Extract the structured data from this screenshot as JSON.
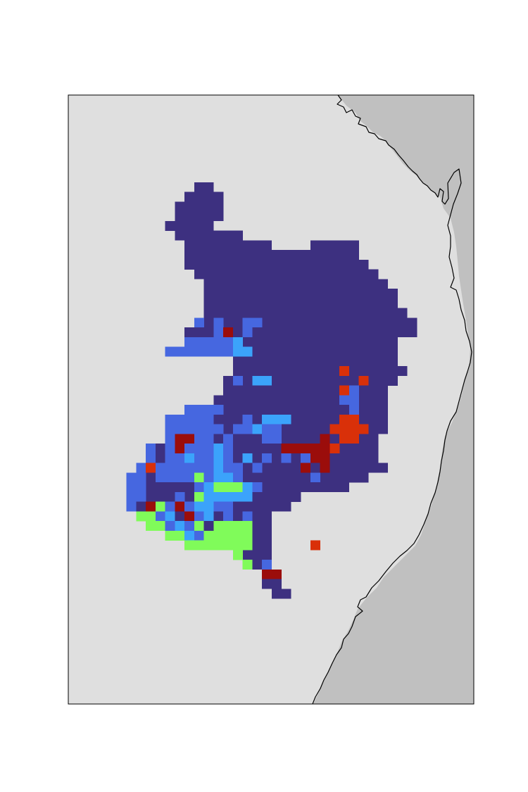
{
  "map": {
    "type": "raster-grid",
    "frame_visible": true,
    "background_color": "#dfdfdf",
    "ocean_color": "#c0c0c0",
    "coastline_color": "#000000",
    "legend": null,
    "title": "",
    "category_colors": {
      "dark_indigo": "#3d3080",
      "royal_blue": "#4667e0",
      "sky_blue": "#3ba3fb",
      "light_green": "#80fb5a",
      "orange_red": "#d93009",
      "dark_red": "#9b0d0b"
    },
    "cell_runs": [
      [
        9,
        13,
        14,
        "dark_indigo"
      ],
      [
        10,
        12,
        15,
        "dark_indigo"
      ],
      [
        11,
        11,
        15,
        "dark_indigo"
      ],
      [
        12,
        11,
        15,
        "dark_indigo"
      ],
      [
        13,
        10,
        14,
        "dark_indigo"
      ],
      [
        14,
        11,
        17,
        "dark_indigo"
      ],
      [
        15,
        12,
        20,
        "dark_indigo"
      ],
      [
        15,
        25,
        29,
        "dark_indigo"
      ],
      [
        16,
        12,
        29,
        "dark_indigo"
      ],
      [
        17,
        12,
        30,
        "dark_indigo"
      ],
      [
        18,
        13,
        31,
        "dark_indigo"
      ],
      [
        19,
        14,
        32,
        "dark_indigo"
      ],
      [
        20,
        14,
        33,
        "dark_indigo"
      ],
      [
        21,
        14,
        33,
        "dark_indigo"
      ],
      [
        22,
        14,
        34,
        "dark_indigo"
      ],
      [
        23,
        13,
        35,
        "dark_indigo"
      ],
      [
        23,
        13,
        13,
        "royal_blue"
      ],
      [
        23,
        15,
        15,
        "royal_blue"
      ],
      [
        23,
        18,
        19,
        "royal_blue"
      ],
      [
        24,
        12,
        35,
        "dark_indigo"
      ],
      [
        24,
        15,
        15,
        "royal_blue"
      ],
      [
        24,
        16,
        16,
        "dark_red"
      ],
      [
        24,
        18,
        18,
        "royal_blue"
      ],
      [
        25,
        12,
        33,
        "dark_indigo"
      ],
      [
        25,
        12,
        16,
        "royal_blue"
      ],
      [
        25,
        17,
        17,
        "sky_blue"
      ],
      [
        26,
        10,
        33,
        "dark_indigo"
      ],
      [
        26,
        10,
        16,
        "royal_blue"
      ],
      [
        26,
        17,
        18,
        "sky_blue"
      ],
      [
        27,
        17,
        33,
        "dark_indigo"
      ],
      [
        28,
        17,
        34,
        "dark_indigo"
      ],
      [
        28,
        28,
        28,
        "orange_red"
      ],
      [
        29,
        16,
        33,
        "dark_indigo"
      ],
      [
        29,
        17,
        17,
        "royal_blue"
      ],
      [
        29,
        19,
        20,
        "sky_blue"
      ],
      [
        29,
        30,
        30,
        "orange_red"
      ],
      [
        30,
        16,
        32,
        "dark_indigo"
      ],
      [
        30,
        28,
        28,
        "orange_red"
      ],
      [
        30,
        29,
        29,
        "royal_blue"
      ],
      [
        31,
        15,
        32,
        "dark_indigo"
      ],
      [
        31,
        28,
        29,
        "royal_blue"
      ],
      [
        32,
        12,
        32,
        "dark_indigo"
      ],
      [
        32,
        12,
        15,
        "royal_blue"
      ],
      [
        32,
        29,
        29,
        "royal_blue"
      ],
      [
        33,
        10,
        32,
        "dark_indigo"
      ],
      [
        33,
        10,
        14,
        "royal_blue"
      ],
      [
        33,
        18,
        18,
        "royal_blue"
      ],
      [
        33,
        20,
        22,
        "sky_blue"
      ],
      [
        33,
        28,
        29,
        "orange_red"
      ],
      [
        34,
        10,
        32,
        "dark_indigo"
      ],
      [
        34,
        10,
        15,
        "royal_blue"
      ],
      [
        34,
        17,
        18,
        "royal_blue"
      ],
      [
        34,
        19,
        19,
        "sky_blue"
      ],
      [
        34,
        20,
        21,
        "royal_blue"
      ],
      [
        34,
        27,
        30,
        "orange_red"
      ],
      [
        35,
        10,
        31,
        "dark_indigo"
      ],
      [
        35,
        10,
        10,
        "royal_blue"
      ],
      [
        35,
        11,
        12,
        "dark_red"
      ],
      [
        35,
        13,
        14,
        "royal_blue"
      ],
      [
        35,
        16,
        16,
        "royal_blue"
      ],
      [
        35,
        20,
        21,
        "royal_blue"
      ],
      [
        35,
        26,
        26,
        "dark_red"
      ],
      [
        35,
        28,
        29,
        "orange_red"
      ],
      [
        36,
        8,
        31,
        "dark_indigo"
      ],
      [
        36,
        8,
        8,
        "royal_blue"
      ],
      [
        36,
        10,
        10,
        "royal_blue"
      ],
      [
        36,
        11,
        11,
        "dark_red"
      ],
      [
        36,
        12,
        14,
        "royal_blue"
      ],
      [
        36,
        15,
        15,
        "sky_blue"
      ],
      [
        36,
        16,
        16,
        "royal_blue"
      ],
      [
        36,
        22,
        26,
        "dark_red"
      ],
      [
        36,
        27,
        27,
        "orange_red"
      ],
      [
        37,
        8,
        31,
        "dark_indigo"
      ],
      [
        37,
        8,
        8,
        "royal_blue"
      ],
      [
        37,
        10,
        11,
        "royal_blue"
      ],
      [
        37,
        12,
        12,
        "sky_blue"
      ],
      [
        37,
        13,
        14,
        "royal_blue"
      ],
      [
        37,
        15,
        15,
        "sky_blue"
      ],
      [
        37,
        16,
        16,
        "royal_blue"
      ],
      [
        37,
        18,
        18,
        "sky_blue"
      ],
      [
        37,
        20,
        20,
        "royal_blue"
      ],
      [
        37,
        22,
        22,
        "royal_blue"
      ],
      [
        37,
        24,
        24,
        "royal_blue"
      ],
      [
        37,
        25,
        26,
        "dark_red"
      ],
      [
        38,
        7,
        32,
        "dark_indigo"
      ],
      [
        38,
        7,
        7,
        "royal_blue"
      ],
      [
        38,
        8,
        8,
        "orange_red"
      ],
      [
        38,
        9,
        14,
        "royal_blue"
      ],
      [
        38,
        15,
        15,
        "sky_blue"
      ],
      [
        38,
        16,
        17,
        "royal_blue"
      ],
      [
        38,
        19,
        19,
        "royal_blue"
      ],
      [
        38,
        24,
        24,
        "dark_red"
      ],
      [
        38,
        26,
        26,
        "dark_red"
      ],
      [
        39,
        6,
        30,
        "dark_indigo"
      ],
      [
        39,
        6,
        7,
        "royal_blue"
      ],
      [
        39,
        9,
        12,
        "royal_blue"
      ],
      [
        39,
        13,
        13,
        "light_green"
      ],
      [
        39,
        14,
        14,
        "royal_blue"
      ],
      [
        39,
        15,
        16,
        "sky_blue"
      ],
      [
        39,
        17,
        17,
        "royal_blue"
      ],
      [
        39,
        25,
        25,
        "royal_blue"
      ],
      [
        40,
        6,
        28,
        "dark_indigo"
      ],
      [
        40,
        6,
        6,
        "royal_blue"
      ],
      [
        40,
        7,
        7,
        "royal_blue"
      ],
      [
        40,
        13,
        13,
        "royal_blue"
      ],
      [
        40,
        14,
        14,
        "sky_blue"
      ],
      [
        40,
        15,
        17,
        "light_green"
      ],
      [
        40,
        18,
        18,
        "sky_blue"
      ],
      [
        40,
        19,
        19,
        "royal_blue"
      ],
      [
        41,
        6,
        23,
        "dark_indigo"
      ],
      [
        41,
        6,
        7,
        "royal_blue"
      ],
      [
        41,
        11,
        11,
        "royal_blue"
      ],
      [
        41,
        13,
        13,
        "light_green"
      ],
      [
        41,
        14,
        17,
        "sky_blue"
      ],
      [
        41,
        18,
        18,
        "sky_blue"
      ],
      [
        42,
        6,
        22,
        "dark_indigo"
      ],
      [
        42,
        6,
        6,
        "royal_blue"
      ],
      [
        42,
        8,
        8,
        "dark_red"
      ],
      [
        42,
        9,
        9,
        "light_green"
      ],
      [
        42,
        10,
        10,
        "royal_blue"
      ],
      [
        42,
        11,
        11,
        "dark_red"
      ],
      [
        42,
        12,
        12,
        "royal_blue"
      ],
      [
        42,
        13,
        14,
        "sky_blue"
      ],
      [
        42,
        15,
        16,
        "royal_blue"
      ],
      [
        43,
        7,
        20,
        "dark_indigo"
      ],
      [
        43,
        7,
        8,
        "light_green"
      ],
      [
        43,
        9,
        9,
        "royal_blue"
      ],
      [
        43,
        10,
        10,
        "sky_blue"
      ],
      [
        43,
        12,
        12,
        "dark_red"
      ],
      [
        43,
        13,
        13,
        "royal_blue"
      ],
      [
        43,
        14,
        14,
        "sky_blue"
      ],
      [
        43,
        16,
        16,
        "royal_blue"
      ],
      [
        43,
        18,
        18,
        "royal_blue"
      ],
      [
        44,
        8,
        20,
        "dark_indigo"
      ],
      [
        44,
        8,
        9,
        "light_green"
      ],
      [
        44,
        10,
        10,
        "royal_blue"
      ],
      [
        44,
        11,
        11,
        "sky_blue"
      ],
      [
        44,
        12,
        12,
        "royal_blue"
      ],
      [
        44,
        13,
        13,
        "light_green"
      ],
      [
        44,
        14,
        14,
        "dark_indigo"
      ],
      [
        44,
        15,
        18,
        "light_green"
      ],
      [
        45,
        10,
        20,
        "dark_indigo"
      ],
      [
        45,
        10,
        11,
        "light_green"
      ],
      [
        45,
        12,
        12,
        "sky_blue"
      ],
      [
        45,
        13,
        13,
        "royal_blue"
      ],
      [
        45,
        14,
        18,
        "light_green"
      ],
      [
        46,
        12,
        20,
        "dark_indigo"
      ],
      [
        46,
        12,
        18,
        "light_green"
      ],
      [
        46,
        25,
        25,
        "orange_red"
      ],
      [
        47,
        17,
        20,
        "dark_indigo"
      ],
      [
        47,
        17,
        17,
        "light_green"
      ],
      [
        48,
        18,
        20,
        "dark_indigo"
      ],
      [
        48,
        18,
        18,
        "light_green"
      ],
      [
        48,
        20,
        20,
        "royal_blue"
      ],
      [
        49,
        20,
        21,
        "dark_red"
      ],
      [
        50,
        20,
        21,
        "dark_indigo"
      ],
      [
        51,
        21,
        22,
        "dark_indigo"
      ]
    ]
  }
}
